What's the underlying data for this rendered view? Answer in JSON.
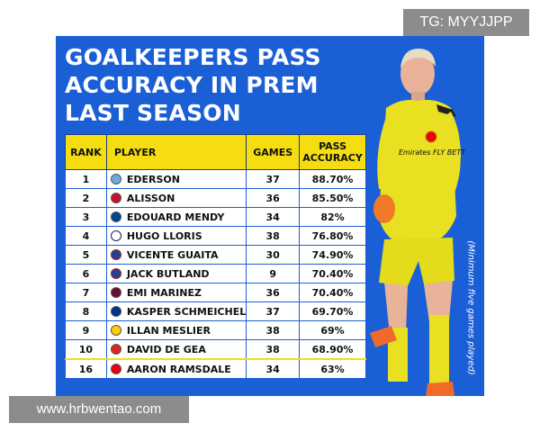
{
  "headline": {
    "line1": "GOALKEEPERS PASS",
    "line2": "ACCURACY IN PREM",
    "line3": "LAST SEASON"
  },
  "table": {
    "headers": {
      "rank": "RANK",
      "player": "PLAYER",
      "games": "GAMES",
      "pass_accuracy": "PASS ACCURACY"
    },
    "rows": [
      {
        "rank": "1",
        "player": "EDERSON",
        "games": "37",
        "accuracy": "88.70%",
        "club_icon": "man-city-crest-icon"
      },
      {
        "rank": "2",
        "player": "ALISSON",
        "games": "36",
        "accuracy": "85.50%",
        "club_icon": "liverpool-crest-icon"
      },
      {
        "rank": "3",
        "player": "EDOUARD MENDY",
        "games": "34",
        "accuracy": "82%",
        "club_icon": "chelsea-crest-icon"
      },
      {
        "rank": "4",
        "player": "HUGO LLORIS",
        "games": "38",
        "accuracy": "76.80%",
        "club_icon": "tottenham-crest-icon"
      },
      {
        "rank": "5",
        "player": "VICENTE GUAITA",
        "games": "30",
        "accuracy": "74.90%",
        "club_icon": "crystal-palace-crest-icon"
      },
      {
        "rank": "6",
        "player": "JACK BUTLAND",
        "games": "9",
        "accuracy": "70.40%",
        "club_icon": "crystal-palace-crest-icon"
      },
      {
        "rank": "7",
        "player": "EMI MARINEZ",
        "games": "36",
        "accuracy": "70.40%",
        "club_icon": "aston-villa-crest-icon"
      },
      {
        "rank": "8",
        "player": "KASPER SCHMEICHEL",
        "games": "37",
        "accuracy": "69.70%",
        "club_icon": "leicester-crest-icon"
      },
      {
        "rank": "9",
        "player": "ILLAN MESLIER",
        "games": "38",
        "accuracy": "69%",
        "club_icon": "leeds-crest-icon"
      },
      {
        "rank": "10",
        "player": "DAVID DE GEA",
        "games": "38",
        "accuracy": "68.90%",
        "club_icon": "man-utd-crest-icon"
      },
      {
        "rank": "16",
        "player": "AARON RAMSDALE",
        "games": "34",
        "accuracy": "63%",
        "club_icon": "arsenal-crest-icon"
      }
    ]
  },
  "side_note": "(Minimum five games played)",
  "jersey_text": "Emirates FLY BETTER",
  "watermarks": {
    "top_right": "TG: MYYJJPP",
    "bottom_left": "www.hrbwentao.com"
  },
  "colors": {
    "background_blue": "#1b5fd6",
    "header_yellow": "#f5dd10",
    "kit_yellow": "#e8e021",
    "highlight_border": "#f5dd10"
  }
}
